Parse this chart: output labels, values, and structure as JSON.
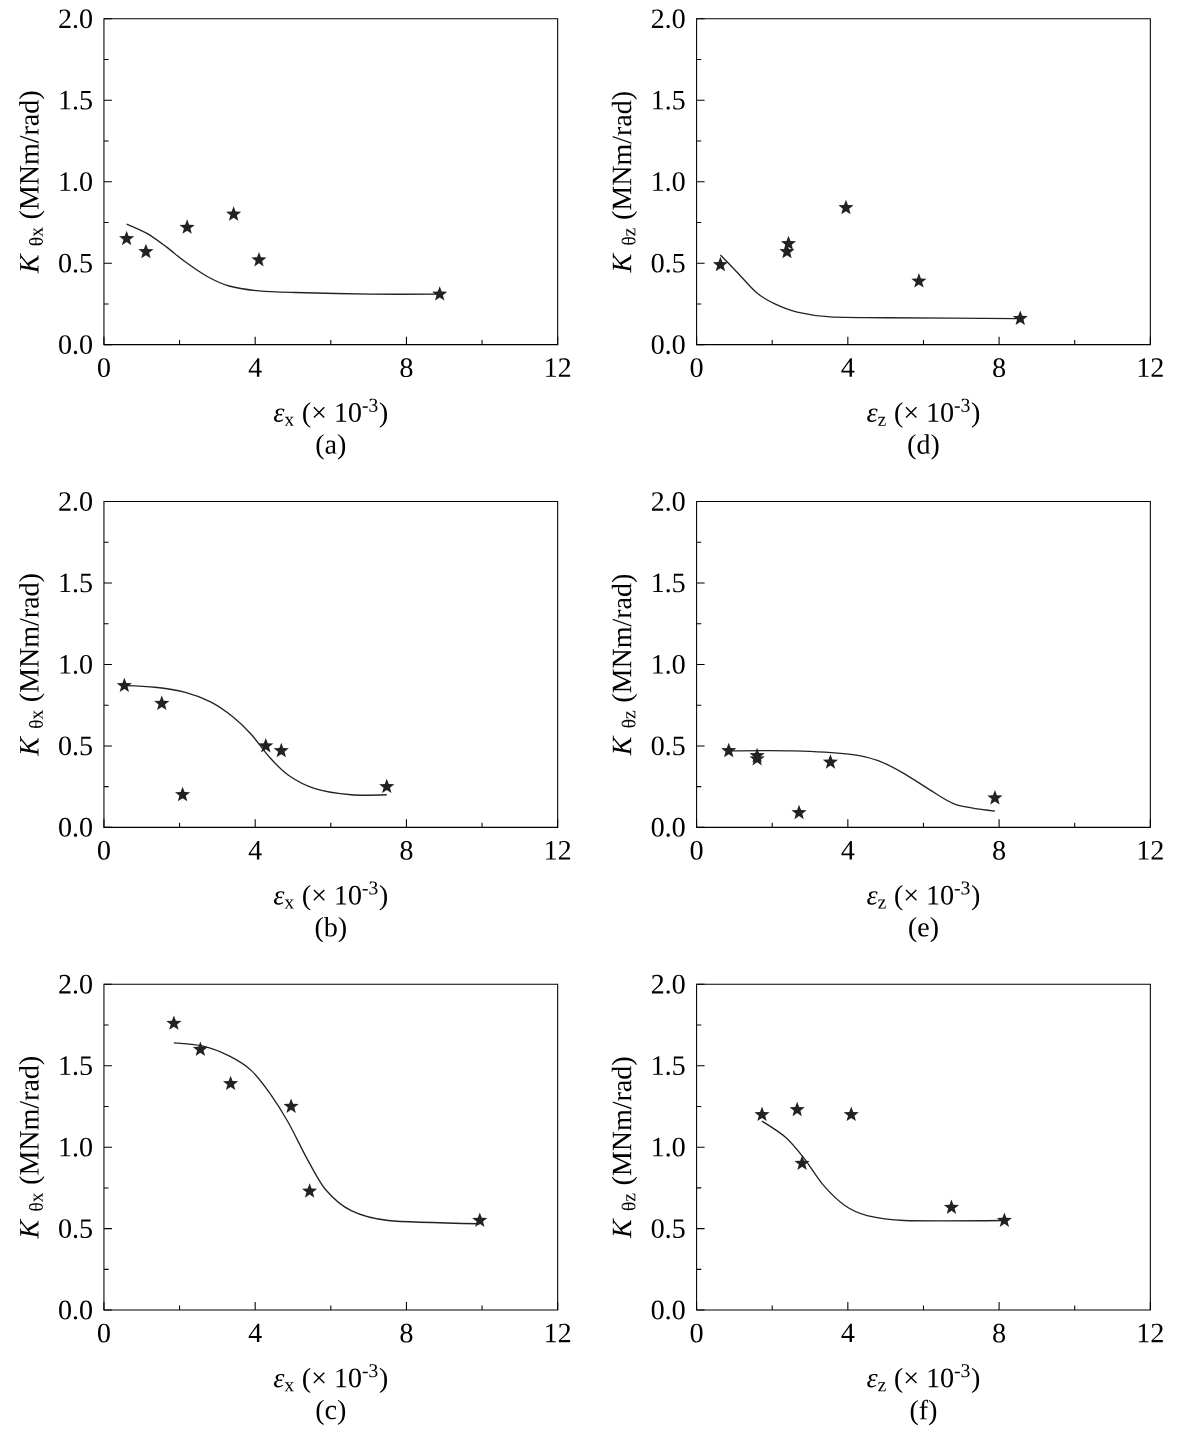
{
  "chart_data": [
    {
      "type": "scatter",
      "title": "(a)",
      "xlabel": "*ε*$_{x}$ (× 10$^{-3}$)",
      "ylabel": "*K* $_{θx}$ (MNm/rad)",
      "xlim": [
        0,
        12
      ],
      "ylim": [
        0,
        2
      ],
      "xticks": [
        0,
        4,
        8,
        12
      ],
      "yticks": [
        {
          "value": 0,
          "label": "0.0"
        },
        {
          "value": 0.5,
          "label": "0.5"
        },
        {
          "value": 1,
          "label": "1.0"
        },
        {
          "value": 1.5,
          "label": "1.5"
        },
        {
          "value": 2,
          "label": "2.0"
        }
      ],
      "series": [
        {
          "type": "scatter",
          "color": "#222222",
          "marker": "star",
          "x": [
            0.6,
            1.11,
            2.2,
            3.43,
            4.1,
            8.88
          ],
          "values": [
            0.65,
            0.57,
            0.72,
            0.8,
            0.52,
            0.31
          ]
        },
        {
          "type": "line",
          "color": "#222222",
          "marker": "none",
          "x": [
            0.6,
            1.16,
            1.65,
            2.14,
            2.72,
            3.31,
            4.1,
            5.07,
            7.03,
            8.88
          ],
          "values": [
            0.74,
            0.68,
            0.6,
            0.51,
            0.42,
            0.36,
            0.33,
            0.32,
            0.31,
            0.31
          ]
        }
      ]
    },
    {
      "type": "scatter",
      "title": "(d)",
      "xlabel": "*ε*$_{z}$ (× 10$^{-3}$)",
      "ylabel": "*K* $_{θz}$ (MNm/rad)",
      "xlim": [
        0,
        12
      ],
      "ylim": [
        0,
        2
      ],
      "xticks": [
        0,
        4,
        8,
        12
      ],
      "yticks": [
        {
          "value": 0,
          "label": "0.0"
        },
        {
          "value": 0.5,
          "label": "0.5"
        },
        {
          "value": 1,
          "label": "1.0"
        },
        {
          "value": 1.5,
          "label": "1.5"
        },
        {
          "value": 2,
          "label": "2.0"
        }
      ],
      "series": [
        {
          "type": "scatter",
          "color": "#222222",
          "marker": "star",
          "x": [
            0.63,
            2.39,
            2.43,
            3.95,
            5.88,
            8.56
          ],
          "values": [
            0.49,
            0.57,
            0.62,
            0.84,
            0.39,
            0.16
          ]
        },
        {
          "type": "line",
          "color": "#222222",
          "marker": "none",
          "x": [
            0.63,
            1.09,
            1.58,
            2.07,
            2.66,
            3.54,
            5.0,
            8.56
          ],
          "values": [
            0.55,
            0.44,
            0.32,
            0.25,
            0.2,
            0.17,
            0.165,
            0.16
          ]
        }
      ]
    },
    {
      "type": "scatter",
      "title": "(b)",
      "xlabel": "*ε*$_{x}$ (× 10$^{-3}$)",
      "ylabel": "*K* $_{θx}$ (MNm/rad)",
      "xlim": [
        0,
        12
      ],
      "ylim": [
        0,
        2
      ],
      "xticks": [
        0,
        4,
        8,
        12
      ],
      "yticks": [
        {
          "value": 0,
          "label": "0.0"
        },
        {
          "value": 0.5,
          "label": "0.5"
        },
        {
          "value": 1,
          "label": "1.0"
        },
        {
          "value": 1.5,
          "label": "1.5"
        },
        {
          "value": 2,
          "label": "2.0"
        }
      ],
      "series": [
        {
          "type": "scatter",
          "color": "#222222",
          "marker": "star",
          "x": [
            0.54,
            1.53,
            2.08,
            4.28,
            4.69,
            7.48
          ],
          "values": [
            0.87,
            0.76,
            0.2,
            0.5,
            0.47,
            0.25
          ]
        },
        {
          "type": "line",
          "color": "#222222",
          "marker": "none",
          "x": [
            0.54,
            1.35,
            2.13,
            2.82,
            3.4,
            3.9,
            4.38,
            4.88,
            5.56,
            6.54,
            7.48
          ],
          "values": [
            0.87,
            0.86,
            0.83,
            0.77,
            0.68,
            0.57,
            0.43,
            0.32,
            0.24,
            0.2,
            0.2
          ]
        }
      ]
    },
    {
      "type": "scatter",
      "title": "(e)",
      "xlabel": "*ε*$_{z}$ (× 10$^{-3}$)",
      "ylabel": "*K* $_{θz}$ (MNm/rad)",
      "xlim": [
        0,
        12
      ],
      "ylim": [
        0,
        2
      ],
      "xticks": [
        0,
        4,
        8,
        12
      ],
      "yticks": [
        {
          "value": 0,
          "label": "0.0"
        },
        {
          "value": 0.5,
          "label": "0.5"
        },
        {
          "value": 1,
          "label": "1.0"
        },
        {
          "value": 1.5,
          "label": "1.5"
        },
        {
          "value": 2,
          "label": "2.0"
        }
      ],
      "series": [
        {
          "type": "scatter",
          "color": "#222222",
          "marker": "star",
          "x": [
            0.85,
            1.6,
            1.6,
            2.71,
            3.54,
            7.89
          ],
          "values": [
            0.47,
            0.44,
            0.42,
            0.09,
            0.4,
            0.18
          ]
        },
        {
          "type": "line",
          "color": "#222222",
          "marker": "none",
          "x": [
            0.85,
            2.56,
            4.02,
            4.8,
            5.49,
            6.17,
            6.86,
            7.89
          ],
          "values": [
            0.47,
            0.47,
            0.45,
            0.41,
            0.33,
            0.23,
            0.14,
            0.1
          ]
        }
      ]
    },
    {
      "type": "scatter",
      "title": "(c)",
      "xlabel": "*ε*$_{x}$ (× 10$^{-3}$)",
      "ylabel": "*K* $_{θx}$ (MNm/rad)",
      "xlim": [
        0,
        12
      ],
      "ylim": [
        0,
        2
      ],
      "xticks": [
        0,
        4,
        8,
        12
      ],
      "yticks": [
        {
          "value": 0,
          "label": "0.0"
        },
        {
          "value": 0.5,
          "label": "0.5"
        },
        {
          "value": 1,
          "label": "1.0"
        },
        {
          "value": 1.5,
          "label": "1.5"
        },
        {
          "value": 2,
          "label": "2.0"
        }
      ],
      "series": [
        {
          "type": "scatter",
          "color": "#222222",
          "marker": "star",
          "x": [
            1.85,
            2.55,
            3.35,
            4.95,
            5.44,
            9.94
          ],
          "values": [
            1.76,
            1.6,
            1.39,
            1.25,
            0.73,
            0.55
          ]
        },
        {
          "type": "line",
          "color": "#222222",
          "marker": "none",
          "x": [
            1.85,
            2.62,
            3.31,
            3.9,
            4.39,
            4.88,
            5.37,
            5.86,
            6.54,
            7.52,
            9.94
          ],
          "values": [
            1.64,
            1.62,
            1.56,
            1.47,
            1.33,
            1.15,
            0.93,
            0.74,
            0.61,
            0.55,
            0.53
          ]
        }
      ]
    },
    {
      "type": "scatter",
      "title": "(f)",
      "xlabel": "*ε*$_{z}$ (× 10$^{-3}$)",
      "ylabel": "*K* $_{θz}$ (MNm/rad)",
      "xlim": [
        0,
        12
      ],
      "ylim": [
        0,
        2
      ],
      "xticks": [
        0,
        4,
        8,
        12
      ],
      "yticks": [
        {
          "value": 0,
          "label": "0.0"
        },
        {
          "value": 0.5,
          "label": "0.5"
        },
        {
          "value": 1,
          "label": "1.0"
        },
        {
          "value": 1.5,
          "label": "1.5"
        },
        {
          "value": 2,
          "label": "2.0"
        }
      ],
      "series": [
        {
          "type": "scatter",
          "color": "#222222",
          "marker": "star",
          "x": [
            1.73,
            2.66,
            2.79,
            4.09,
            6.74,
            8.14
          ],
          "values": [
            1.2,
            1.23,
            0.9,
            1.2,
            0.63,
            0.55
          ]
        },
        {
          "type": "line",
          "color": "#222222",
          "marker": "none",
          "x": [
            1.73,
            2.36,
            2.85,
            3.34,
            3.93,
            4.51,
            5.49,
            8.14
          ],
          "values": [
            1.16,
            1.06,
            0.93,
            0.77,
            0.64,
            0.58,
            0.55,
            0.55
          ]
        }
      ]
    }
  ]
}
